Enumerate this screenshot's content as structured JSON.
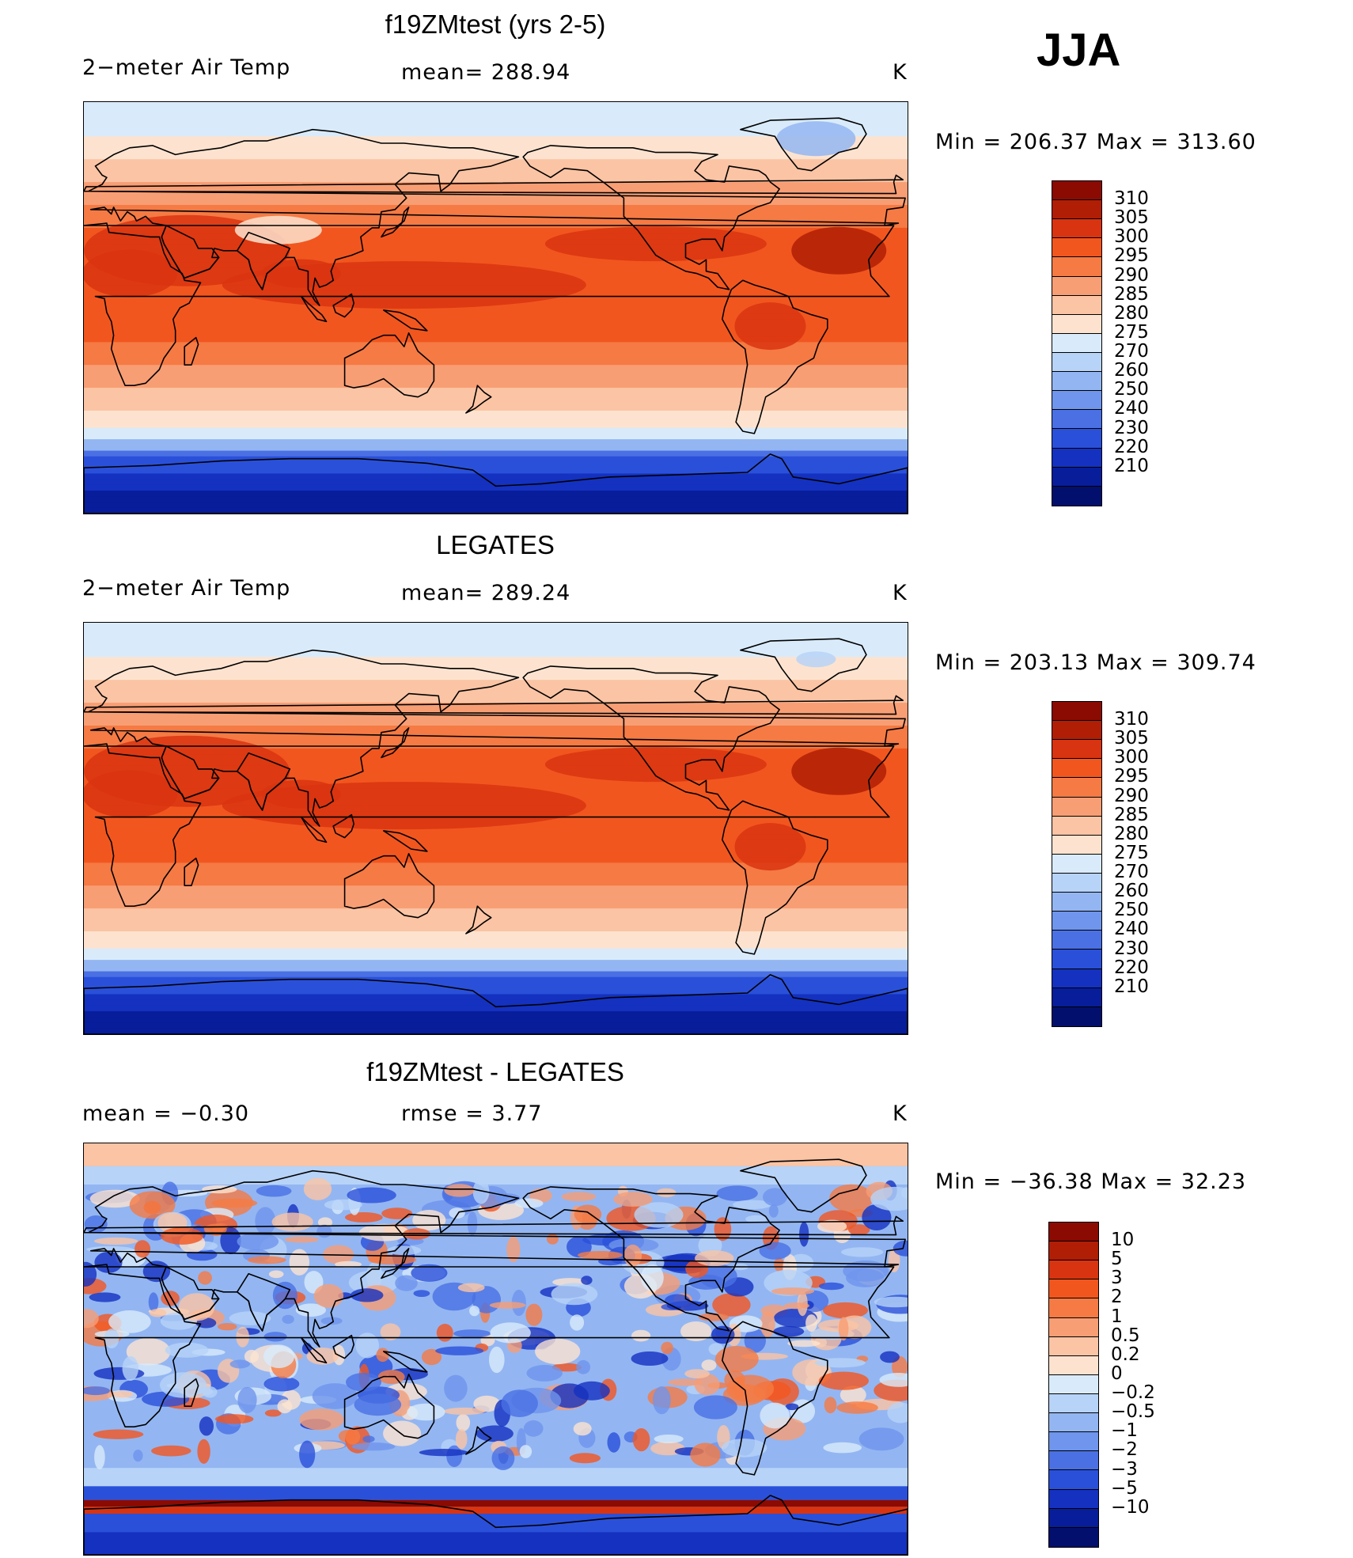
{
  "season": "JJA",
  "palette_temp": [
    "#8b0a02",
    "#b01e05",
    "#d93411",
    "#f2561f",
    "#f57a44",
    "#f89e74",
    "#fbc4a4",
    "#fde3cf",
    "#d9ebfa",
    "#b7d3f7",
    "#93b6f2",
    "#6f95ec",
    "#4a70e4",
    "#2a50da",
    "#1431c0",
    "#071d9a",
    "#030f6c"
  ],
  "palette_diff": [
    "#8b0a02",
    "#b01e05",
    "#d93411",
    "#f2561f",
    "#f57a44",
    "#f89e74",
    "#fbc4a4",
    "#fde3cf",
    "#d9ebfa",
    "#b7d3f7",
    "#93b6f2",
    "#6f95ec",
    "#4a70e4",
    "#2a50da",
    "#1431c0",
    "#071d9a",
    "#030f6c"
  ],
  "panels": [
    {
      "title": "f19ZMtest (yrs 2-5)",
      "left_label": "2−meter Air Temp",
      "center_label": "mean=  288.94",
      "units": "K",
      "minmax": "Min  =  206.37  Max  =  313.60",
      "colorbar_labels": [
        "310",
        "305",
        "300",
        "295",
        "290",
        "285",
        "280",
        "275",
        "270",
        "260",
        "250",
        "240",
        "230",
        "220",
        "210"
      ],
      "field": "model"
    },
    {
      "title": "LEGATES",
      "left_label": "2−meter Air Temp",
      "center_label": "mean=  289.24",
      "units": "K",
      "minmax": "Min  =  203.13  Max  =  309.74",
      "colorbar_labels": [
        "310",
        "305",
        "300",
        "295",
        "290",
        "285",
        "280",
        "275",
        "270",
        "260",
        "250",
        "240",
        "230",
        "220",
        "210"
      ],
      "field": "obs"
    },
    {
      "title": "f19ZMtest - LEGATES",
      "left_label": "mean  =    −0.30",
      "center_label": "rmse  =     3.77",
      "units": "K",
      "minmax": "Min  =  −36.38  Max  =    32.23",
      "colorbar_labels": [
        "10",
        "5",
        "3",
        "2",
        "1",
        "0.5",
        "0.2",
        "0",
        "−0.2",
        "−0.5",
        "−1",
        "−2",
        "−3",
        "−5",
        "−10"
      ],
      "field": "diff"
    }
  ]
}
